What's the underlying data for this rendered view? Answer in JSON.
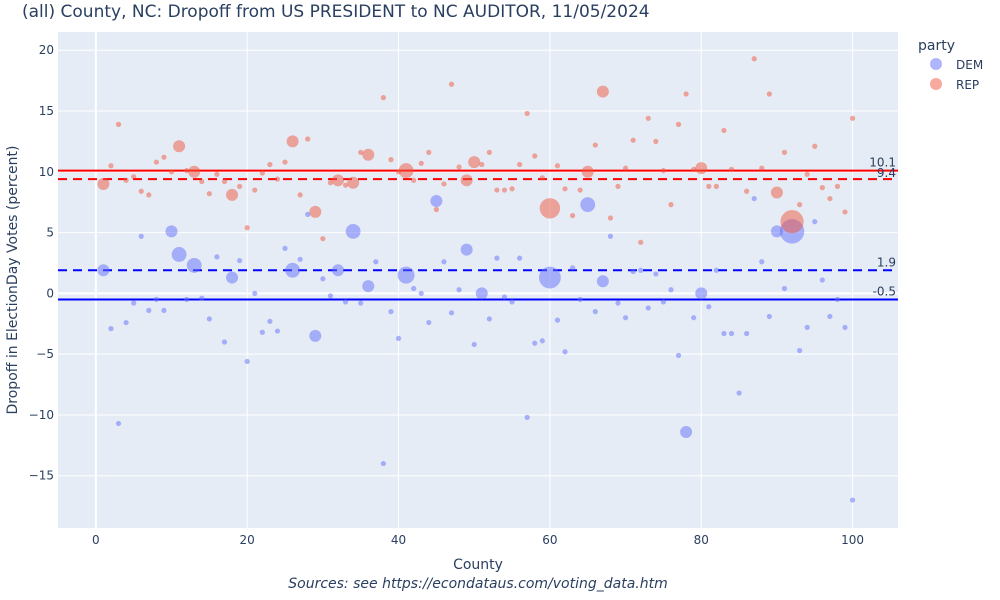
{
  "chart_data": {
    "type": "scatter",
    "title": "(all) County, NC: Dropoff from US PRESIDENT to NC AUDITOR, 11/05/2024",
    "xlabel": "County",
    "ylabel": "Dropoff in ElectionDay Votes (percent)",
    "source": "Sources: see https://econdataus.com/voting_data.htm",
    "xlim": [
      -5,
      106
    ],
    "ylim": [
      -19.3,
      21.5
    ],
    "xticks": [
      0,
      20,
      40,
      60,
      80,
      100
    ],
    "yticks": [
      -15,
      -10,
      -5,
      0,
      5,
      10,
      15,
      20
    ],
    "grid": true,
    "legend": {
      "title": "party",
      "placement": "right"
    },
    "series": [
      {
        "name": "DEM",
        "color": "#636efa",
        "x": [
          1,
          2,
          3,
          4,
          5,
          6,
          7,
          8,
          9,
          10,
          11,
          12,
          13,
          14,
          15,
          16,
          17,
          18,
          19,
          20,
          21,
          22,
          23,
          24,
          25,
          26,
          27,
          28,
          29,
          30,
          31,
          32,
          33,
          34,
          35,
          36,
          37,
          38,
          39,
          40,
          41,
          42,
          43,
          44,
          45,
          46,
          47,
          48,
          49,
          50,
          51,
          52,
          53,
          54,
          55,
          56,
          57,
          58,
          59,
          60,
          61,
          62,
          63,
          64,
          65,
          66,
          67,
          68,
          69,
          70,
          71,
          72,
          73,
          74,
          75,
          76,
          77,
          78,
          79,
          80,
          81,
          82,
          83,
          84,
          85,
          86,
          87,
          88,
          89,
          90,
          91,
          92,
          93,
          94,
          95,
          96,
          97,
          98,
          99,
          100
        ],
        "y": [
          1.9,
          -2.9,
          -10.7,
          -2.4,
          -0.8,
          4.7,
          -1.4,
          -0.5,
          -1.4,
          5.1,
          3.2,
          -0.5,
          2.3,
          -0.4,
          -2.1,
          3.0,
          -4.0,
          1.3,
          2.7,
          -5.6,
          0.0,
          -3.2,
          -2.3,
          -3.1,
          3.7,
          1.9,
          2.8,
          6.5,
          -3.5,
          1.2,
          -0.2,
          1.9,
          -0.7,
          5.1,
          -0.8,
          0.6,
          2.6,
          -14.0,
          -1.5,
          -3.7,
          1.5,
          0.4,
          0.0,
          -2.4,
          7.6,
          2.6,
          -1.6,
          0.3,
          3.6,
          -4.2,
          0.0,
          -2.1,
          2.9,
          -0.3,
          -0.7,
          2.9,
          -10.2,
          -4.1,
          -3.9,
          1.3,
          -2.2,
          -4.8,
          2.1,
          -0.5,
          7.3,
          -1.5,
          1.0,
          4.7,
          -0.8,
          -2.0,
          1.8,
          1.9,
          -1.2,
          1.6,
          -0.7,
          0.3,
          -5.1,
          -11.4,
          -2.0,
          0.0,
          -1.1,
          1.9,
          -3.3,
          -3.3,
          -8.2,
          -3.3,
          7.8,
          2.6,
          -1.9,
          5.1,
          0.4,
          5.1,
          -4.7,
          -2.8,
          5.9,
          1.1,
          -1.9,
          -0.5,
          -2.8,
          -17.0
        ],
        "size": [
          2,
          1,
          1,
          1,
          1,
          1,
          1,
          1,
          1,
          2,
          3,
          1,
          3,
          1,
          1,
          1,
          1,
          2,
          1,
          1,
          1,
          1,
          1,
          1,
          1,
          3,
          1,
          1,
          2,
          1,
          1,
          2,
          1,
          3,
          1,
          2,
          1,
          1,
          1,
          1,
          4,
          1,
          1,
          1,
          2,
          1,
          1,
          1,
          2,
          1,
          2,
          1,
          1,
          1,
          1,
          1,
          1,
          1,
          1,
          7,
          1,
          1,
          1,
          1,
          3,
          1,
          2,
          1,
          1,
          1,
          1,
          1,
          1,
          1,
          1,
          1,
          1,
          2,
          1,
          2,
          1,
          1,
          1,
          1,
          1,
          1,
          1,
          1,
          1,
          2,
          1,
          9,
          1,
          1,
          1,
          1,
          1,
          1,
          1,
          1
        ]
      },
      {
        "name": "REP",
        "color": "#ef553b",
        "x": [
          1,
          2,
          3,
          4,
          5,
          6,
          7,
          8,
          9,
          10,
          11,
          12,
          13,
          14,
          15,
          16,
          17,
          18,
          19,
          20,
          21,
          22,
          23,
          24,
          25,
          26,
          27,
          28,
          29,
          30,
          31,
          32,
          33,
          34,
          35,
          36,
          38,
          39,
          40,
          41,
          42,
          43,
          44,
          45,
          46,
          47,
          48,
          49,
          50,
          51,
          52,
          53,
          54,
          55,
          56,
          57,
          58,
          59,
          60,
          61,
          62,
          63,
          64,
          65,
          66,
          67,
          68,
          69,
          70,
          71,
          72,
          73,
          74,
          75,
          76,
          77,
          78,
          79,
          80,
          81,
          82,
          83,
          84,
          86,
          87,
          88,
          89,
          90,
          91,
          92,
          93,
          94,
          95,
          96,
          97,
          98,
          99,
          100
        ],
        "y": [
          9.0,
          10.5,
          13.9,
          9.3,
          9.6,
          8.4,
          8.1,
          10.8,
          11.2,
          10.0,
          12.1,
          10.1,
          10.0,
          9.2,
          8.2,
          9.8,
          9.2,
          8.1,
          8.8,
          5.4,
          8.5,
          9.9,
          10.6,
          9.4,
          10.8,
          12.5,
          8.1,
          12.7,
          6.7,
          4.5,
          9.1,
          9.3,
          8.9,
          9.1,
          11.6,
          11.4,
          16.1,
          11.0,
          10.0,
          10.1,
          9.3,
          10.7,
          11.6,
          6.9,
          9.0,
          17.2,
          10.4,
          9.3,
          10.8,
          10.6,
          11.6,
          8.5,
          8.5,
          8.6,
          10.6,
          14.8,
          11.3,
          9.5,
          7.0,
          10.5,
          8.6,
          6.4,
          8.5,
          10.0,
          12.2,
          16.6,
          6.2,
          8.8,
          10.3,
          12.6,
          4.2,
          14.4,
          12.5,
          10.1,
          7.3,
          13.9,
          16.4,
          10.2,
          10.3,
          8.8,
          8.8,
          13.4,
          10.2,
          8.4,
          19.3,
          10.3,
          16.4,
          8.3,
          11.6,
          5.9,
          7.3,
          9.8,
          12.1,
          8.7,
          7.8,
          8.8,
          6.7,
          14.4
        ],
        "size": [
          2,
          1,
          1,
          1,
          1,
          1,
          1,
          1,
          1,
          1,
          2,
          1,
          2,
          1,
          1,
          1,
          1,
          2,
          1,
          1,
          1,
          1,
          1,
          1,
          1,
          2,
          1,
          1,
          2,
          1,
          1,
          2,
          1,
          2,
          1,
          2,
          1,
          1,
          1,
          3,
          1,
          1,
          1,
          1,
          1,
          1,
          1,
          2,
          2,
          1,
          1,
          1,
          1,
          1,
          1,
          1,
          1,
          1,
          6,
          1,
          1,
          1,
          1,
          2,
          1,
          2,
          1,
          1,
          1,
          1,
          1,
          1,
          1,
          1,
          1,
          1,
          1,
          1,
          2,
          1,
          1,
          1,
          1,
          1,
          1,
          1,
          1,
          2,
          1,
          8,
          1,
          1,
          1,
          1,
          1,
          1,
          1,
          1
        ]
      }
    ],
    "reference_lines": [
      {
        "value": 10.1,
        "label": "10.1",
        "color": "#ff0000",
        "dash": "solid"
      },
      {
        "value": 9.4,
        "label": "9.4",
        "color": "#ff0000",
        "dash": "dash"
      },
      {
        "value": 1.9,
        "label": "1.9",
        "color": "#0000ff",
        "dash": "dash"
      },
      {
        "value": -0.5,
        "label": "-0.5",
        "color": "#0000ff",
        "dash": "solid"
      }
    ]
  }
}
